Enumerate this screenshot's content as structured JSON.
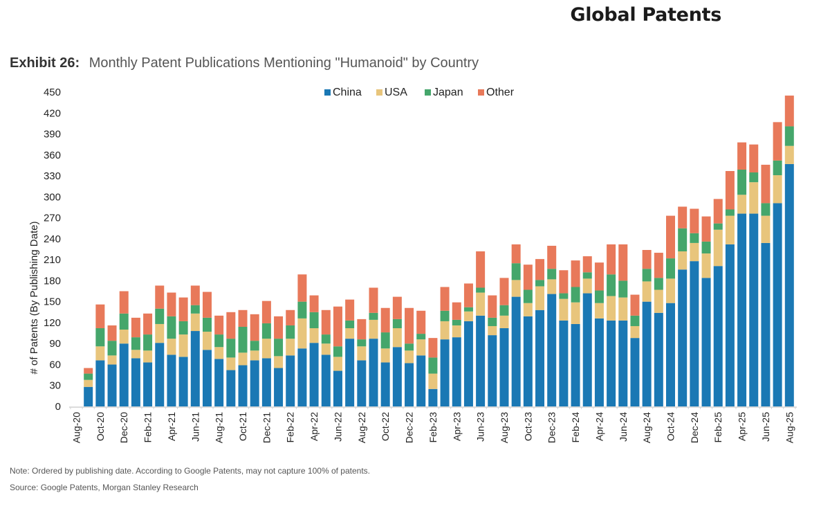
{
  "header": {
    "title": "Global Patents",
    "exhibit_label": "Exhibit 26:",
    "exhibit_title": "Monthly Patent Publications Mentioning \"Humanoid\" by Country"
  },
  "footer": {
    "note": "Note: Ordered by publishing date. According to Google Patents, may not capture 100% of patents.",
    "source": "Source: Google Patents, Morgan Stanley Research"
  },
  "chart_data": {
    "type": "bar",
    "stacked": true,
    "title": "Monthly Patent Publications Mentioning \"Humanoid\" by Country",
    "xlabel": "",
    "ylabel": "# of Patents (By Publishing Date)",
    "ylim": [
      0,
      450
    ],
    "yticks": [
      0,
      30,
      60,
      90,
      120,
      150,
      180,
      210,
      240,
      270,
      300,
      330,
      360,
      390,
      420,
      450
    ],
    "grid": false,
    "legend_position": "top-center",
    "categories": [
      "Aug-20",
      "Sep-20",
      "Oct-20",
      "Nov-20",
      "Dec-20",
      "Jan-21",
      "Feb-21",
      "Mar-21",
      "Apr-21",
      "May-21",
      "Jun-21",
      "Jul-21",
      "Aug-21",
      "Sep-21",
      "Oct-21",
      "Nov-21",
      "Dec-21",
      "Jan-22",
      "Feb-22",
      "Mar-22",
      "Apr-22",
      "May-22",
      "Jun-22",
      "Jul-22",
      "Aug-22",
      "Sep-22",
      "Oct-22",
      "Nov-22",
      "Dec-22",
      "Jan-23",
      "Feb-23",
      "Mar-23",
      "Apr-23",
      "May-23",
      "Jun-23",
      "Jul-23",
      "Aug-23",
      "Sep-23",
      "Oct-23",
      "Nov-23",
      "Dec-23",
      "Jan-24",
      "Feb-24",
      "Mar-24",
      "Apr-24",
      "May-24",
      "Jun-24",
      "Jul-24",
      "Aug-24",
      "Sep-24",
      "Oct-24",
      "Nov-24",
      "Dec-24",
      "Jan-25",
      "Feb-25",
      "Mar-25",
      "Apr-25",
      "May-25",
      "Jun-25",
      "Jul-25",
      "Aug-25"
    ],
    "xtick_labels": [
      "Aug-20",
      "Oct-20",
      "Dec-20",
      "Feb-21",
      "Apr-21",
      "Jun-21",
      "Aug-21",
      "Oct-21",
      "Dec-21",
      "Feb-22",
      "Apr-22",
      "Jun-22",
      "Aug-22",
      "Oct-22",
      "Dec-22",
      "Feb-23",
      "Apr-23",
      "Jun-23",
      "Aug-23",
      "Oct-23",
      "Dec-23",
      "Feb-24",
      "Apr-24",
      "Jun-24",
      "Aug-24",
      "Oct-24",
      "Dec-24",
      "Feb-25",
      "Apr-25",
      "Jun-25",
      "Aug-25"
    ],
    "series": [
      {
        "name": "China",
        "color": "#1a78b4",
        "values": [
          0,
          28,
          66,
          60,
          90,
          69,
          63,
          91,
          74,
          71,
          108,
          81,
          68,
          52,
          59,
          66,
          69,
          55,
          73,
          83,
          91,
          74,
          51,
          97,
          66,
          97,
          63,
          85,
          62,
          73,
          25,
          96,
          99,
          122,
          130,
          102,
          112,
          157,
          129,
          138,
          161,
          123,
          118,
          162,
          126,
          123,
          123,
          98,
          150,
          134,
          148,
          196,
          208,
          184,
          201,
          232,
          276,
          276,
          234,
          291,
          347
        ]
      },
      {
        "name": "USA",
        "color": "#e8c57c",
        "values": [
          0,
          10,
          20,
          13,
          20,
          12,
          17,
          27,
          23,
          32,
          25,
          26,
          17,
          18,
          18,
          14,
          28,
          17,
          24,
          43,
          21,
          16,
          20,
          15,
          20,
          27,
          20,
          27,
          18,
          23,
          22,
          26,
          17,
          14,
          33,
          13,
          18,
          24,
          19,
          34,
          21,
          31,
          31,
          21,
          22,
          35,
          33,
          17,
          29,
          33,
          35,
          26,
          26,
          35,
          52,
          41,
          27,
          45,
          39,
          40,
          26
        ]
      },
      {
        "name": "Japan",
        "color": "#45a66b",
        "values": [
          0,
          9,
          26,
          21,
          23,
          18,
          23,
          22,
          32,
          19,
          12,
          20,
          18,
          27,
          37,
          14,
          22,
          25,
          19,
          24,
          23,
          13,
          15,
          11,
          10,
          10,
          23,
          13,
          10,
          8,
          23,
          15,
          8,
          6,
          7,
          12,
          15,
          24,
          19,
          9,
          15,
          8,
          22,
          9,
          18,
          31,
          24,
          15,
          18,
          17,
          29,
          33,
          14,
          17,
          9,
          9,
          36,
          14,
          18,
          21,
          28
        ]
      },
      {
        "name": "Other",
        "color": "#e8795a",
        "values": [
          0,
          8,
          34,
          22,
          32,
          28,
          30,
          33,
          34,
          34,
          28,
          37,
          27,
          38,
          24,
          38,
          32,
          32,
          22,
          39,
          24,
          35,
          57,
          30,
          29,
          36,
          35,
          32,
          51,
          33,
          28,
          34,
          25,
          34,
          52,
          32,
          39,
          27,
          36,
          30,
          33,
          33,
          38,
          23,
          40,
          43,
          52,
          30,
          27,
          36,
          61,
          31,
          35,
          36,
          35,
          55,
          39,
          40,
          55,
          55,
          44
        ]
      }
    ]
  }
}
